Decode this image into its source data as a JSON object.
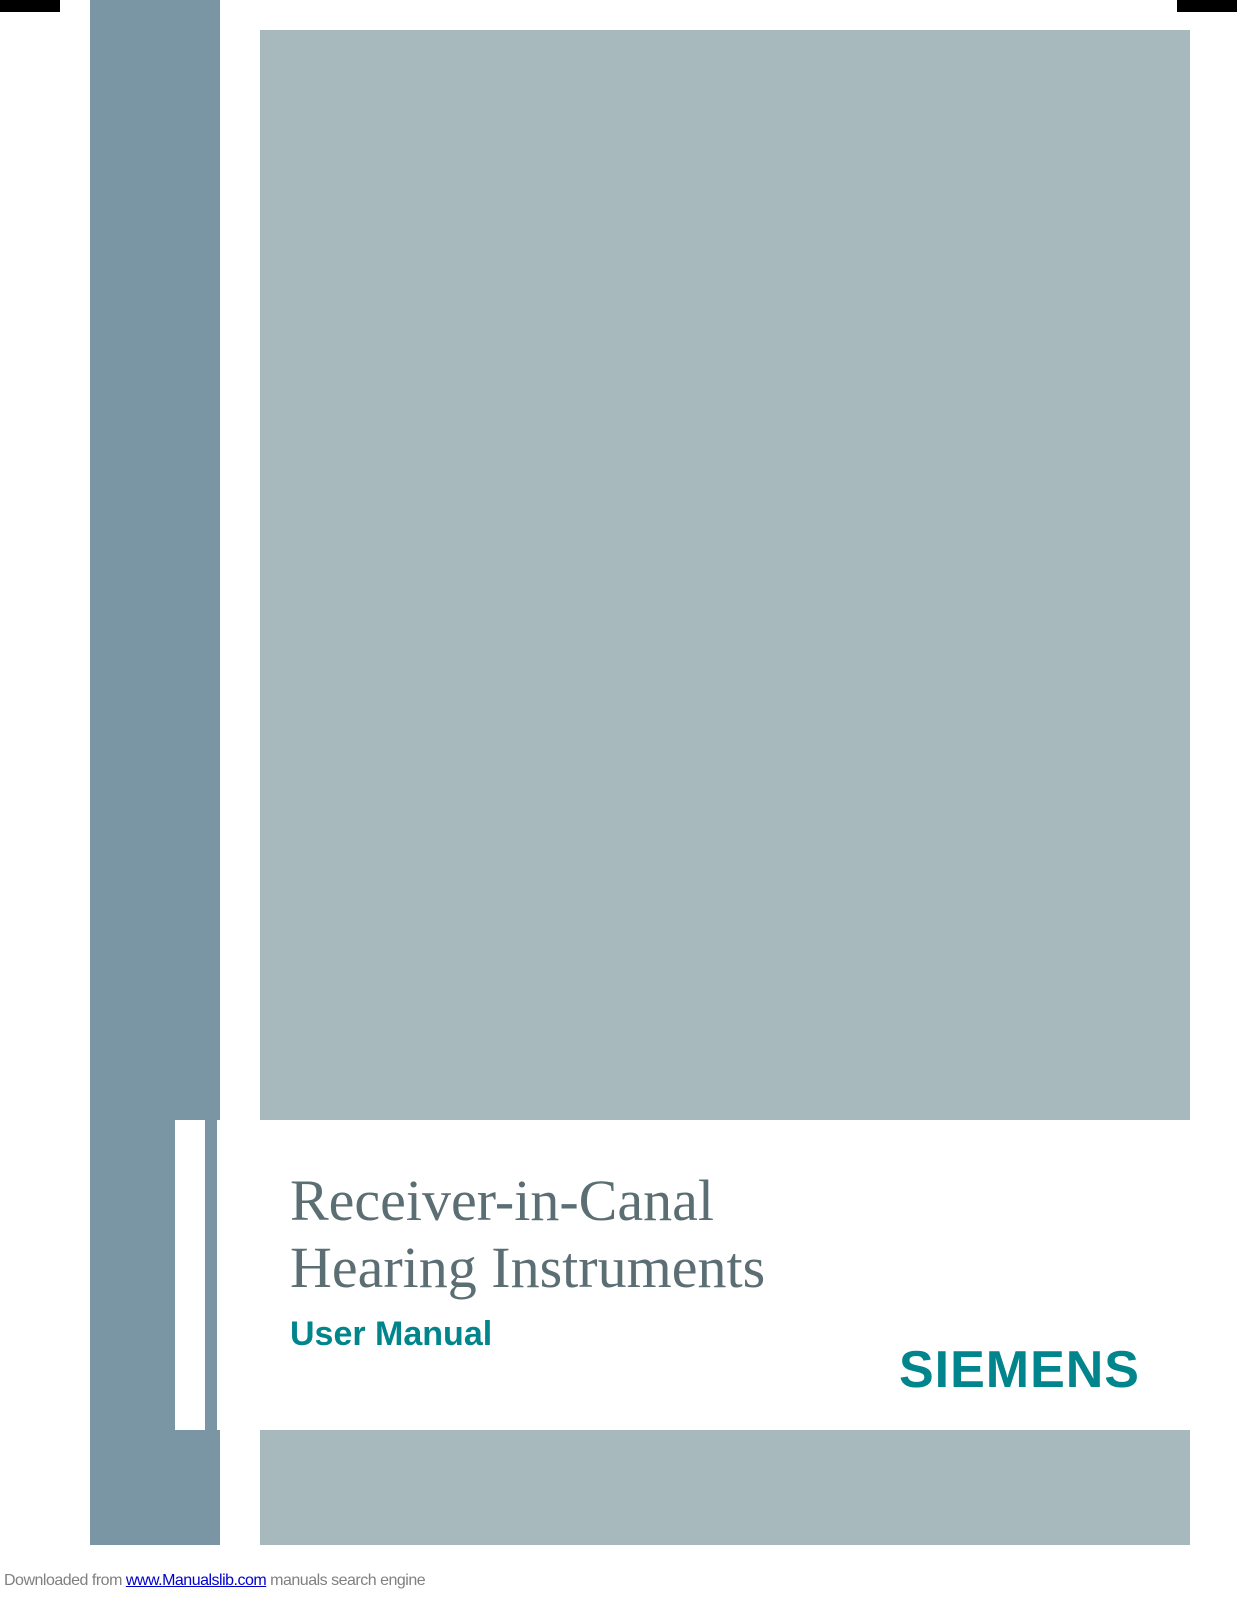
{
  "layout": {
    "page_bg": "#ffffff",
    "left_bar_color": "#7a95a3",
    "main_panel_color": "#a8b9be",
    "card_bg": "#ffffff",
    "corner_marks_color": "#000000"
  },
  "title": {
    "line1": "Receiver-in-Canal",
    "line2": "Hearing Instruments",
    "subtitle": "User Manual",
    "title_color": "#5b6e73",
    "title_fontsize_pt": 44,
    "subtitle_color": "#00858d",
    "subtitle_fontsize_pt": 26
  },
  "brand": {
    "name": "SIEMENS",
    "color": "#00858d",
    "fontsize_pt": 40,
    "weight": 900
  },
  "footer": {
    "prefix": "Downloaded from ",
    "link_text": "www.Manualslib.com",
    "suffix": " manuals search engine",
    "text_color": "#808080",
    "link_color": "#0000cc",
    "fontsize_pt": 12
  }
}
